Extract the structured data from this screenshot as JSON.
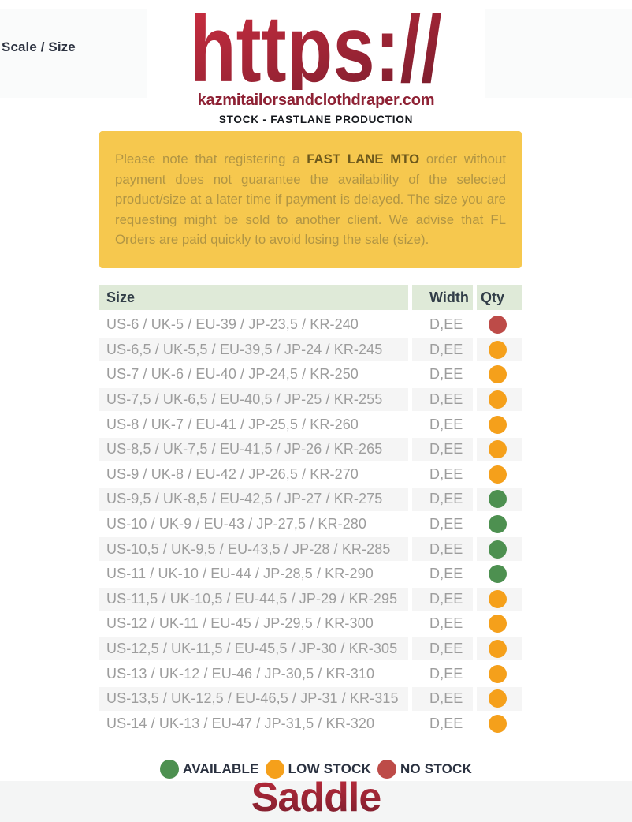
{
  "page": {
    "scale_size_label": "Scale / Size",
    "logo": {
      "https_text": "https://",
      "domain": "kazmitailorsandclothdraper.com",
      "subtitle": "STOCK - FASTLANE PRODUCTION"
    },
    "notice": {
      "text_before_bold": "Please note that registering a ",
      "bold_text": "FAST LANE MTO",
      "text_after_bold": " order without payment does not guarantee the availability of the selected product/size at a later time if payment is delayed. The size you are requesting might be sold to another client. We advise that FL Orders are paid quickly to avoid losing the sale (size)."
    },
    "footer_title": "Saddle"
  },
  "table": {
    "headers": {
      "size": "Size",
      "width": "Width",
      "qty": "Qty"
    },
    "rows": [
      {
        "size": "US-6 / UK-5 / EU-39 / JP-23,5 / KR-240",
        "width": "D,EE",
        "status": "no-stock"
      },
      {
        "size": "US-6,5 / UK-5,5 / EU-39,5 / JP-24 / KR-245",
        "width": "D,EE",
        "status": "low-stock"
      },
      {
        "size": "US-7 / UK-6 / EU-40 / JP-24,5 / KR-250",
        "width": "D,EE",
        "status": "low-stock"
      },
      {
        "size": "US-7,5 / UK-6,5 / EU-40,5 / JP-25 / KR-255",
        "width": "D,EE",
        "status": "low-stock"
      },
      {
        "size": "US-8 / UK-7 / EU-41 / JP-25,5 / KR-260",
        "width": "D,EE",
        "status": "low-stock"
      },
      {
        "size": "US-8,5 / UK-7,5 / EU-41,5 / JP-26 / KR-265",
        "width": "D,EE",
        "status": "low-stock"
      },
      {
        "size": "US-9 / UK-8 / EU-42 / JP-26,5 / KR-270",
        "width": "D,EE",
        "status": "low-stock"
      },
      {
        "size": "US-9,5 / UK-8,5 / EU-42,5 / JP-27 / KR-275",
        "width": "D,EE",
        "status": "available"
      },
      {
        "size": "US-10 / UK-9 / EU-43 / JP-27,5 / KR-280",
        "width": "D,EE",
        "status": "available"
      },
      {
        "size": "US-10,5 / UK-9,5 / EU-43,5 / JP-28 / KR-285",
        "width": "D,EE",
        "status": "available"
      },
      {
        "size": "US-11 / UK-10 / EU-44 / JP-28,5 / KR-290",
        "width": "D,EE",
        "status": "available"
      },
      {
        "size": "US-11,5 / UK-10,5 / EU-44,5 / JP-29 / KR-295",
        "width": "D,EE",
        "status": "low-stock"
      },
      {
        "size": "US-12 / UK-11 / EU-45 / JP-29,5 / KR-300",
        "width": "D,EE",
        "status": "low-stock"
      },
      {
        "size": "US-12,5 / UK-11,5 / EU-45,5 / JP-30 / KR-305",
        "width": "D,EE",
        "status": "low-stock"
      },
      {
        "size": "US-13 / UK-12 / EU-46 / JP-30,5 / KR-310",
        "width": "D,EE",
        "status": "low-stock"
      },
      {
        "size": "US-13,5 / UK-12,5 / EU-46,5 / JP-31 / KR-315",
        "width": "D,EE",
        "status": "low-stock"
      },
      {
        "size": "US-14 / UK-13 / EU-47 / JP-31,5 / KR-320",
        "width": "D,EE",
        "status": "low-stock"
      }
    ]
  },
  "legend": [
    {
      "label": "AVAILABLE",
      "status": "available"
    },
    {
      "label": "LOW STOCK",
      "status": "low-stock"
    },
    {
      "label": "NO STOCK",
      "status": "no-stock"
    }
  ],
  "colors": {
    "available": "#4d9050",
    "low-stock": "#f5a01b",
    "no-stock": "#bd4b48",
    "notice_bg": "#f6c84e",
    "brand_maroon": "#8e2134",
    "header_green": "#dfead8"
  }
}
